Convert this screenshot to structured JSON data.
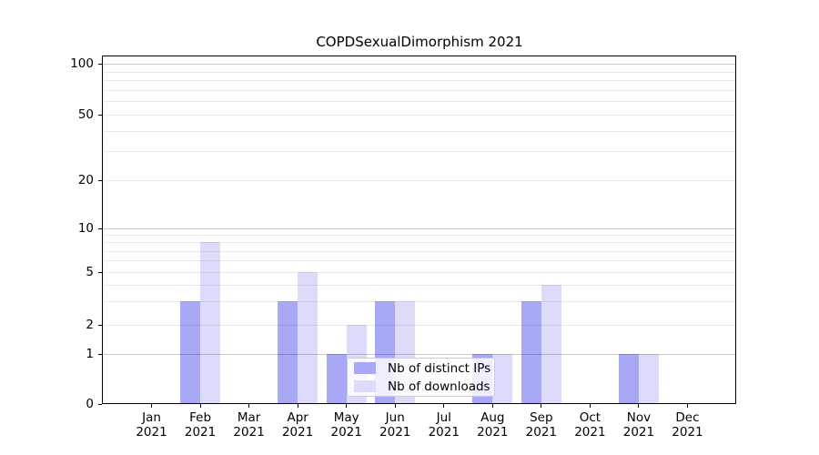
{
  "title": "COPDSexualDimorphism 2021",
  "chart_data": {
    "type": "bar",
    "title": "COPDSexualDimorphism 2021",
    "scale": "log-like (ticks 0,1,2,5,10,20,50,100)",
    "grid": true,
    "legend_position": "lower center-left, inside plot",
    "year": "2021",
    "categories": [
      "Jan",
      "Feb",
      "Mar",
      "Apr",
      "May",
      "Jun",
      "Jul",
      "Aug",
      "Sep",
      "Oct",
      "Nov",
      "Dec"
    ],
    "series": [
      {
        "name": "Nb of distinct IPs",
        "color": "#a8a8f5",
        "values": [
          0,
          3,
          0,
          3,
          1,
          3,
          0,
          1,
          3,
          0,
          1,
          0
        ]
      },
      {
        "name": "Nb of downloads",
        "color": "#dcdcfa",
        "values": [
          0,
          8,
          0,
          5,
          2,
          3,
          0,
          1,
          4,
          0,
          1,
          0
        ]
      }
    ],
    "y_ticks": [
      0,
      1,
      2,
      5,
      10,
      20,
      50,
      100
    ],
    "y_major_gridlines": [
      1,
      10,
      100
    ],
    "y_minor_gridlines": [
      2,
      3,
      4,
      5,
      6,
      7,
      8,
      9,
      20,
      30,
      40,
      50,
      60,
      70,
      80,
      90
    ],
    "ylim": [
      0,
      130
    ],
    "xlabel": "",
    "ylabel": ""
  },
  "legend": {
    "items": [
      "Nb of distinct IPs",
      "Nb of downloads"
    ]
  },
  "colors": {
    "bar_dark": "#a8a8f5",
    "bar_light": "#dcdcfa",
    "grid_major": "#c9c9c9",
    "grid_minor": "#e9e9e9",
    "spine": "#000000",
    "legend_border": "#cccccc"
  }
}
